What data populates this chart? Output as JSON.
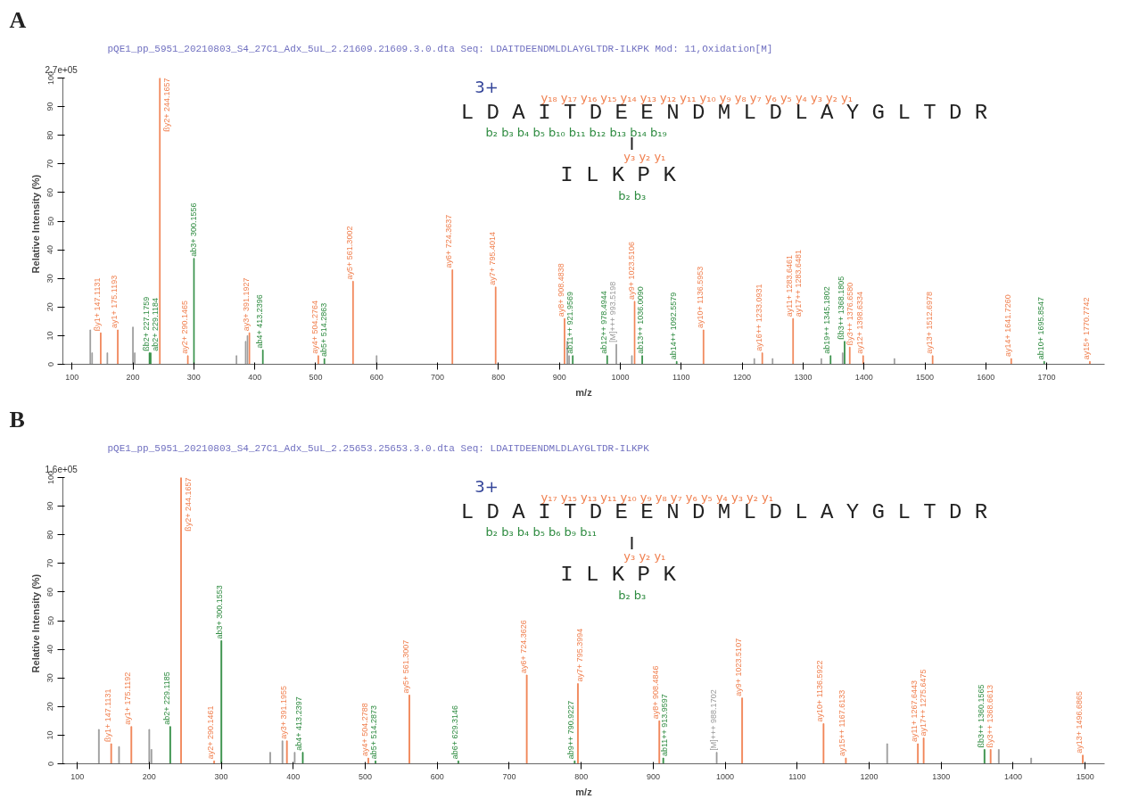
{
  "chart_data": [
    {
      "type": "bar",
      "title": "A",
      "subtitle": "pQE1_pp_5951_20210803_S4_27C1_Adx_5uL_2.21609.21609.3.0.dta    Seq: LDAITDEENDMLDLAYGLTDR-ILKPK    Mod: 11,Oxidation[M]",
      "xlabel": "m/z",
      "ylabel": "Relative   Intensity (%)",
      "xlim": [
        85,
        1795
      ],
      "xticks": [
        100,
        200,
        300,
        400,
        500,
        600,
        700,
        800,
        900,
        1000,
        1100,
        1200,
        1300,
        1400,
        1500,
        1600,
        1700
      ],
      "ylim": [
        0,
        100
      ],
      "yticks": [
        0,
        10,
        20,
        30,
        40,
        50,
        60,
        70,
        80,
        90,
        100
      ],
      "grid": false,
      "annotations": [
        "2.7e+05",
        "3+",
        "y₁₈ y₁₇ y₁₆ y₁₅ y₁₄ y₁₃ y₁₂ y₁₁ y₁₀ y₉ y₈ y₇ y₆ y₅ y₄ y₃ y₂ y₁",
        "L D A I T D E E N D M L D L A Y G L T D R",
        "b₂ b₃ b₄ b₅ b₁₀ b₁₁ b₁₂ b₁₃ b₁₄ b₁₉",
        "I",
        "y₃ y₂ y₁",
        "I L K P K",
        "b₂ b₃",
        {
          "text": "ßy1+ 147.1131",
          "x": 147.1131,
          "y": 11
        },
        {
          "text": "ay1+ 175.1193",
          "x": 175.1193,
          "y": 12
        },
        {
          "text": "ßb2+ 227.1759",
          "x": 227.1759,
          "y": 4
        },
        {
          "text": "ab2+ 229.1184",
          "x": 229.1184,
          "y": 4
        },
        {
          "text": "ßy2+ 244.1657",
          "x": 244.1657,
          "y": 100
        },
        {
          "text": "ay2+ 290.1465",
          "x": 290.1465,
          "y": 3
        },
        {
          "text": "ab3+ 300.1556",
          "x": 300.1556,
          "y": 37
        },
        {
          "text": "ay3+ 391.1927",
          "x": 391.1927,
          "y": 11
        },
        {
          "text": "ab4+ 413.2396",
          "x": 413.2396,
          "y": 5
        },
        {
          "text": "ay4+ 504.2764",
          "x": 504.2764,
          "y": 3
        },
        {
          "text": "ab5+ 514.2863",
          "x": 514.2863,
          "y": 2
        },
        {
          "text": "ay5+ 561.3002",
          "x": 561.3002,
          "y": 29
        },
        {
          "text": "ay6+ 724.3637",
          "x": 724.3637,
          "y": 33
        },
        {
          "text": "ay7+ 795.4014",
          "x": 795.4014,
          "y": 27
        },
        {
          "text": "ay8+ 908.4838",
          "x": 908.4838,
          "y": 16
        },
        {
          "text": "ab11++ 921.9569",
          "x": 921.9569,
          "y": 3
        },
        {
          "text": "ab12++ 978.4944",
          "x": 978.4944,
          "y": 3
        },
        {
          "text": "[M]+++ 993.5198",
          "x": 993.5198,
          "y": 7
        },
        {
          "text": "ay9+ 1023.5106",
          "x": 1023.5106,
          "y": 22
        },
        {
          "text": "ab13++ 1036.0090",
          "x": 1036.009,
          "y": 3
        },
        {
          "text": "ab14++ 1092.5579",
          "x": 1092.5579,
          "y": 1
        },
        {
          "text": "ay10+ 1136.5953",
          "x": 1136.5953,
          "y": 12
        },
        {
          "text": "ay16++ 1233.0931",
          "x": 1233.0931,
          "y": 4
        },
        {
          "text": "ay11+ 1283.6461",
          "x": 1283.6461,
          "y": 16
        },
        {
          "text": "ay17++ 1283.6481",
          "x": 1283.6461,
          "y": 16
        },
        {
          "text": "ab19++ 1345.1802",
          "x": 1345.1802,
          "y": 3
        },
        {
          "text": "ßb3++ 1368.1805",
          "x": 1368.1805,
          "y": 8
        },
        {
          "text": "ßy3++ 1376.6580",
          "x": 1376.658,
          "y": 6
        },
        {
          "text": "ay12+ 1398.6334",
          "x": 1398.6334,
          "y": 3
        },
        {
          "text": "ay13+ 1512.6978",
          "x": 1512.6978,
          "y": 3
        },
        {
          "text": "ay14+ 1641.7260",
          "x": 1641.726,
          "y": 2
        },
        {
          "text": "ab10+ 1695.8547",
          "x": 1695.8547,
          "y": 1
        },
        {
          "text": "ay15+ 1770.7742",
          "x": 1770.7742,
          "y": 1
        }
      ],
      "series": [
        {
          "color": "#f08050",
          "x": [
            147.1131,
            175.1193,
            244.1657,
            290.1465,
            391.1927,
            504.2764,
            561.3002,
            724.3637,
            795.4014,
            908.4838,
            1023.5106,
            1136.5953,
            1233.0931,
            1283.6461,
            1376.658,
            1398.6334,
            1512.6978,
            1641.726,
            1770.7742
          ],
          "values": [
            11,
            12,
            100,
            3,
            11,
            3,
            29,
            33,
            27,
            16,
            22,
            12,
            4,
            16,
            6,
            3,
            3,
            2,
            1
          ]
        },
        {
          "color": "#2e8b40",
          "x": [
            227.1759,
            229.1184,
            300.1556,
            413.2396,
            514.2863,
            921.9569,
            978.4944,
            1036.009,
            1092.5579,
            1345.1802,
            1368.1805,
            1695.8547
          ],
          "values": [
            4,
            4,
            37,
            5,
            2,
            3,
            3,
            3,
            1,
            3,
            8,
            1
          ]
        },
        {
          "color": "#999999",
          "x": [
            130,
            133,
            158,
            200,
            203,
            370,
            385,
            388,
            600,
            913,
            916,
            993.5198,
            1019,
            1220,
            1250,
            1330,
            1365,
            1450
          ],
          "values": [
            12,
            4,
            4,
            13,
            4,
            3,
            8,
            10,
            3,
            8,
            3,
            7,
            3,
            2,
            2,
            2,
            4,
            2
          ]
        }
      ]
    },
    {
      "type": "bar",
      "title": "B",
      "subtitle": "pQE1_pp_5951_20210803_S4_27C1_Adx_5uL_2.25653.25653.3.0.dta    Seq: LDAITDEENDMLDLAYGLTDR-ILKPK",
      "xlabel": "m/z",
      "ylabel": "Relative   Intensity (%)",
      "xlim": [
        80,
        1527
      ],
      "xticks": [
        100,
        200,
        300,
        400,
        500,
        600,
        700,
        800,
        900,
        1000,
        1100,
        1200,
        1300,
        1400,
        1500
      ],
      "ylim": [
        0,
        100
      ],
      "yticks": [
        0,
        10,
        20,
        30,
        40,
        50,
        60,
        70,
        80,
        90,
        100
      ],
      "grid": false,
      "annotations": [
        "1.6e+05",
        "3+",
        "y₁₇ y₁₅ y₁₃ y₁₁ y₁₀ y₉ y₈ y₇ y₆ y₅ y₄ y₃ y₂ y₁",
        "L D A I T D E E N D M L D L A Y G L T D R",
        "b₂ b₃ b₄ b₅ b₆ b₉ b₁₁",
        "I",
        "y₃ y₂ y₁",
        "I L K P K",
        "b₂ b₃",
        {
          "text": "ßy1+ 147.1131",
          "x": 147.1131,
          "y": 7
        },
        {
          "text": "ay1+ 175.1192",
          "x": 175.1192,
          "y": 13
        },
        {
          "text": "ab2+ 229.1185",
          "x": 229.1185,
          "y": 13
        },
        {
          "text": "ßy2+ 244.1657",
          "x": 244.1657,
          "y": 100
        },
        {
          "text": "ay2+ 290.1461",
          "x": 290.1461,
          "y": 1
        },
        {
          "text": "ab3+ 300.1553",
          "x": 300.1553,
          "y": 43
        },
        {
          "text": "ay3+ 391.1955",
          "x": 391.1955,
          "y": 8
        },
        {
          "text": "ab4+ 413.2397",
          "x": 413.2397,
          "y": 4
        },
        {
          "text": "ay4+ 504.2788",
          "x": 504.2788,
          "y": 2
        },
        {
          "text": "ab5+ 514.2873",
          "x": 514.2873,
          "y": 1
        },
        {
          "text": "ay5+ 561.3007",
          "x": 561.3007,
          "y": 24
        },
        {
          "text": "ab6+ 629.3146",
          "x": 629.3146,
          "y": 1
        },
        {
          "text": "ay6+ 724.3626",
          "x": 724.3626,
          "y": 31
        },
        {
          "text": "ab9++ 790.9227",
          "x": 790.9227,
          "y": 1
        },
        {
          "text": "ay7+ 795.3994",
          "x": 795.3994,
          "y": 28
        },
        {
          "text": "ay8+ 908.4846",
          "x": 908.4846,
          "y": 15
        },
        {
          "text": "ab11++ 913.9597",
          "x": 913.9597,
          "y": 2
        },
        {
          "text": "[M]+++ 988.1702",
          "x": 988.1702,
          "y": 4
        },
        {
          "text": "ay9+ 1023.5107",
          "x": 1023.5107,
          "y": 23
        },
        {
          "text": "ay10+ 1136.5922",
          "x": 1136.5922,
          "y": 14
        },
        {
          "text": "ay15++ 1167.6133",
          "x": 1167.6133,
          "y": 2
        },
        {
          "text": "ay11+ 1267.6443",
          "x": 1267.6443,
          "y": 7
        },
        {
          "text": "ay17++ 1275.6475",
          "x": 1275.6475,
          "y": 9
        },
        {
          "text": "ßb3++ 1360.1565",
          "x": 1360.1565,
          "y": 5
        },
        {
          "text": "ßy3++ 1368.6613",
          "x": 1368.6613,
          "y": 5
        },
        {
          "text": "ay13+ 1496.6865",
          "x": 1496.6865,
          "y": 3
        }
      ],
      "series": [
        {
          "color": "#f08050",
          "x": [
            147.1131,
            175.1192,
            244.1657,
            290.1461,
            391.1955,
            504.2788,
            561.3007,
            724.3626,
            795.3994,
            908.4846,
            1023.5107,
            1136.5922,
            1167.6133,
            1267.6443,
            1275.6475,
            1368.6613,
            1496.6865
          ],
          "values": [
            7,
            13,
            100,
            1,
            8,
            2,
            24,
            31,
            28,
            15,
            23,
            14,
            2,
            7,
            9,
            5,
            3
          ]
        },
        {
          "color": "#2e8b40",
          "x": [
            229.1185,
            300.1553,
            413.2397,
            514.2873,
            629.3146,
            790.9227,
            913.9597,
            1360.1565
          ],
          "values": [
            13,
            43,
            4,
            1,
            1,
            1,
            2,
            5
          ]
        },
        {
          "color": "#999999",
          "x": [
            130,
            158,
            200,
            203,
            368,
            385,
            402,
            988.1702,
            1225,
            1380,
            1425
          ],
          "values": [
            12,
            6,
            12,
            5,
            4,
            8,
            4,
            4,
            7,
            5,
            2
          ]
        }
      ]
    }
  ]
}
